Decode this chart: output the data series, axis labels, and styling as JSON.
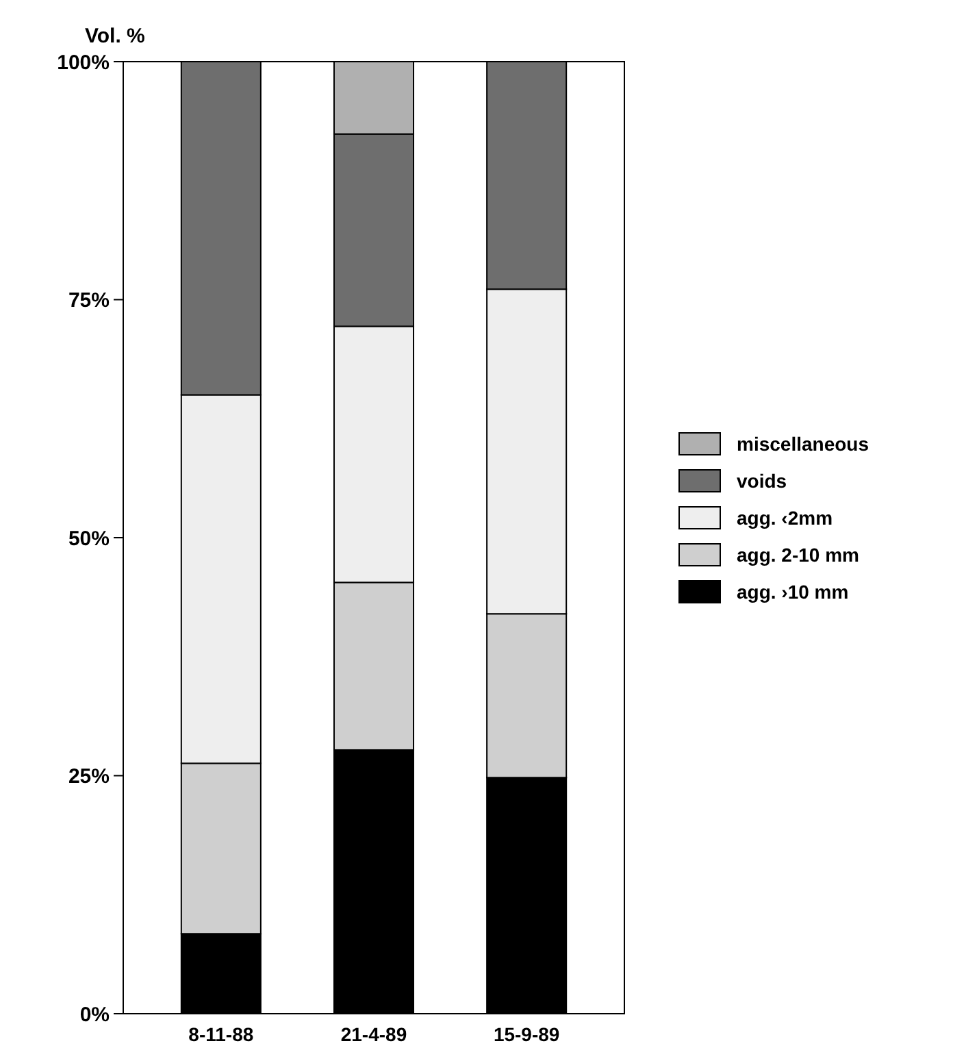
{
  "chart_data": {
    "type": "bar",
    "stacked": true,
    "ylabel": "Vol. %",
    "categories": [
      "8-11-88",
      "21-4-89",
      "15-9-89"
    ],
    "series": [
      {
        "name": "agg. ›10 mm",
        "color": "#000000",
        "values": [
          8.4,
          27.7,
          24.8
        ]
      },
      {
        "name": "agg. 2-10 mm",
        "color": "#cfcfcf",
        "values": [
          17.9,
          17.6,
          17.2
        ]
      },
      {
        "name": "agg. ‹2mm",
        "color": "#eeeeee",
        "values": [
          38.7,
          26.9,
          34.1
        ]
      },
      {
        "name": "voids",
        "color": "#6e6e6e",
        "values": [
          35.0,
          20.2,
          23.9
        ]
      },
      {
        "name": "miscellaneous",
        "color": "#b0b0b0",
        "values": [
          0,
          7.6,
          0
        ]
      }
    ],
    "ylim": [
      0,
      100
    ],
    "yticks": [
      {
        "value": 0,
        "label": "0%"
      },
      {
        "value": 25,
        "label": "25%"
      },
      {
        "value": 50,
        "label": "50%"
      },
      {
        "value": 75,
        "label": "75%"
      },
      {
        "value": 100,
        "label": "100%"
      }
    ],
    "grid": false,
    "legend": "right"
  }
}
